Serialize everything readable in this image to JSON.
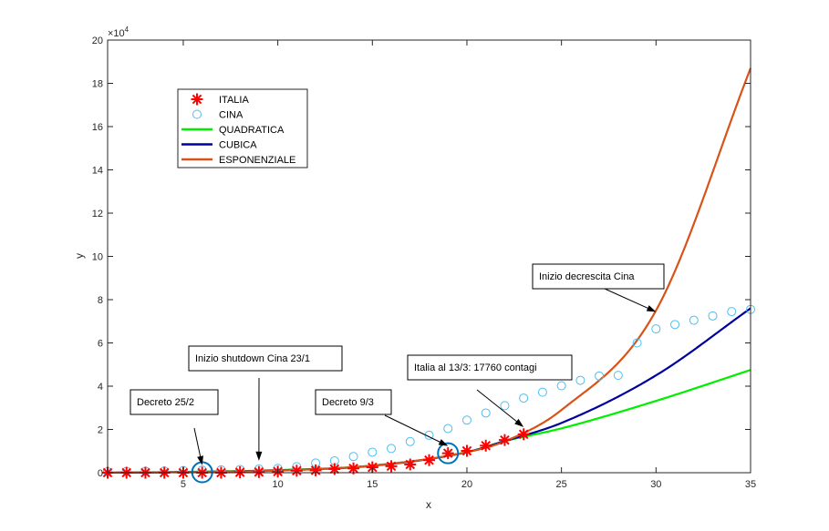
{
  "chart_data": {
    "type": "line",
    "xlabel": "x",
    "ylabel": "y",
    "exponent_label": "×10",
    "exponent_power": "4",
    "xlim": [
      1,
      35
    ],
    "ylim": [
      0,
      200000
    ],
    "x_ticks": [
      5,
      10,
      15,
      20,
      25,
      30,
      35
    ],
    "y_ticks": [
      0,
      20000,
      40000,
      60000,
      80000,
      100000,
      120000,
      140000,
      160000,
      180000,
      200000
    ],
    "y_tick_labels": [
      "0",
      "2",
      "4",
      "6",
      "8",
      "10",
      "12",
      "14",
      "16",
      "18",
      "20"
    ],
    "grid": false,
    "legend_position": "top-left",
    "series": [
      {
        "name": "ITALIA",
        "kind": "marker-star",
        "color": "#ff0000",
        "x": [
          1,
          2,
          3,
          4,
          5,
          6,
          7,
          8,
          9,
          10,
          11,
          12,
          13,
          14,
          15,
          16,
          17,
          18,
          19,
          20,
          21,
          22,
          23
        ],
        "y": [
          0,
          0,
          0,
          0,
          0,
          0,
          0,
          200,
          300,
          500,
          900,
          1100,
          1700,
          2000,
          2500,
          3000,
          3800,
          5800,
          9000,
          10100,
          12500,
          15100,
          17760
        ]
      },
      {
        "name": "CINA",
        "kind": "marker-circle",
        "color": "#4dbeee",
        "x": [
          1,
          2,
          3,
          4,
          5,
          6,
          7,
          8,
          9,
          10,
          11,
          12,
          13,
          14,
          15,
          16,
          17,
          18,
          19,
          20,
          21,
          22,
          23,
          24,
          25,
          26,
          27,
          28,
          29,
          30,
          31,
          32,
          33,
          34,
          35
        ],
        "y": [
          500,
          600,
          700,
          800,
          1000,
          1200,
          1300,
          1500,
          1700,
          2000,
          2800,
          4500,
          5500,
          7500,
          9500,
          11200,
          14400,
          17300,
          20400,
          24300,
          27600,
          31000,
          34500,
          37200,
          40200,
          42700,
          44700,
          45000,
          60000,
          66500,
          68500,
          70500,
          72500,
          74500,
          75500
        ]
      },
      {
        "name": "QUADRATICA",
        "kind": "line",
        "color": "#00ee00",
        "x": [
          1,
          5,
          10,
          15,
          20,
          22,
          25,
          30,
          35
        ],
        "y": [
          0,
          400,
          1200,
          3300,
          9500,
          14600,
          20500,
          33200,
          47500
        ]
      },
      {
        "name": "CUBICA",
        "kind": "line",
        "color": "#0000a0",
        "x": [
          1,
          5,
          10,
          15,
          20,
          22,
          25,
          30,
          35
        ],
        "y": [
          0,
          300,
          1100,
          3200,
          9500,
          14600,
          23000,
          45000,
          76000
        ]
      },
      {
        "name": "ESPONENZIALE",
        "kind": "line",
        "color": "#d95319",
        "x": [
          1,
          5,
          10,
          15,
          20,
          22,
          25,
          30,
          35
        ],
        "y": [
          0,
          300,
          1000,
          3300,
          9500,
          14500,
          29000,
          75000,
          187000
        ]
      }
    ],
    "annotations": [
      {
        "text": "Decreto 25/2",
        "arrow_to": [
          6,
          100
        ]
      },
      {
        "text": "Inizio shutdown Cina 23/1",
        "arrow_to": [
          9,
          500
        ]
      },
      {
        "text": "Decreto 9/3",
        "arrow_to": [
          19,
          9000
        ]
      },
      {
        "text": "Italia al 13/3: 17760 contagi",
        "arrow_to": [
          23,
          17760
        ]
      },
      {
        "text": "Inizio decrescita Cina",
        "arrow_to": [
          30,
          71000
        ]
      }
    ],
    "highlight_circles": [
      {
        "x": 6,
        "y": 200
      },
      {
        "x": 19,
        "y": 9000
      }
    ]
  }
}
